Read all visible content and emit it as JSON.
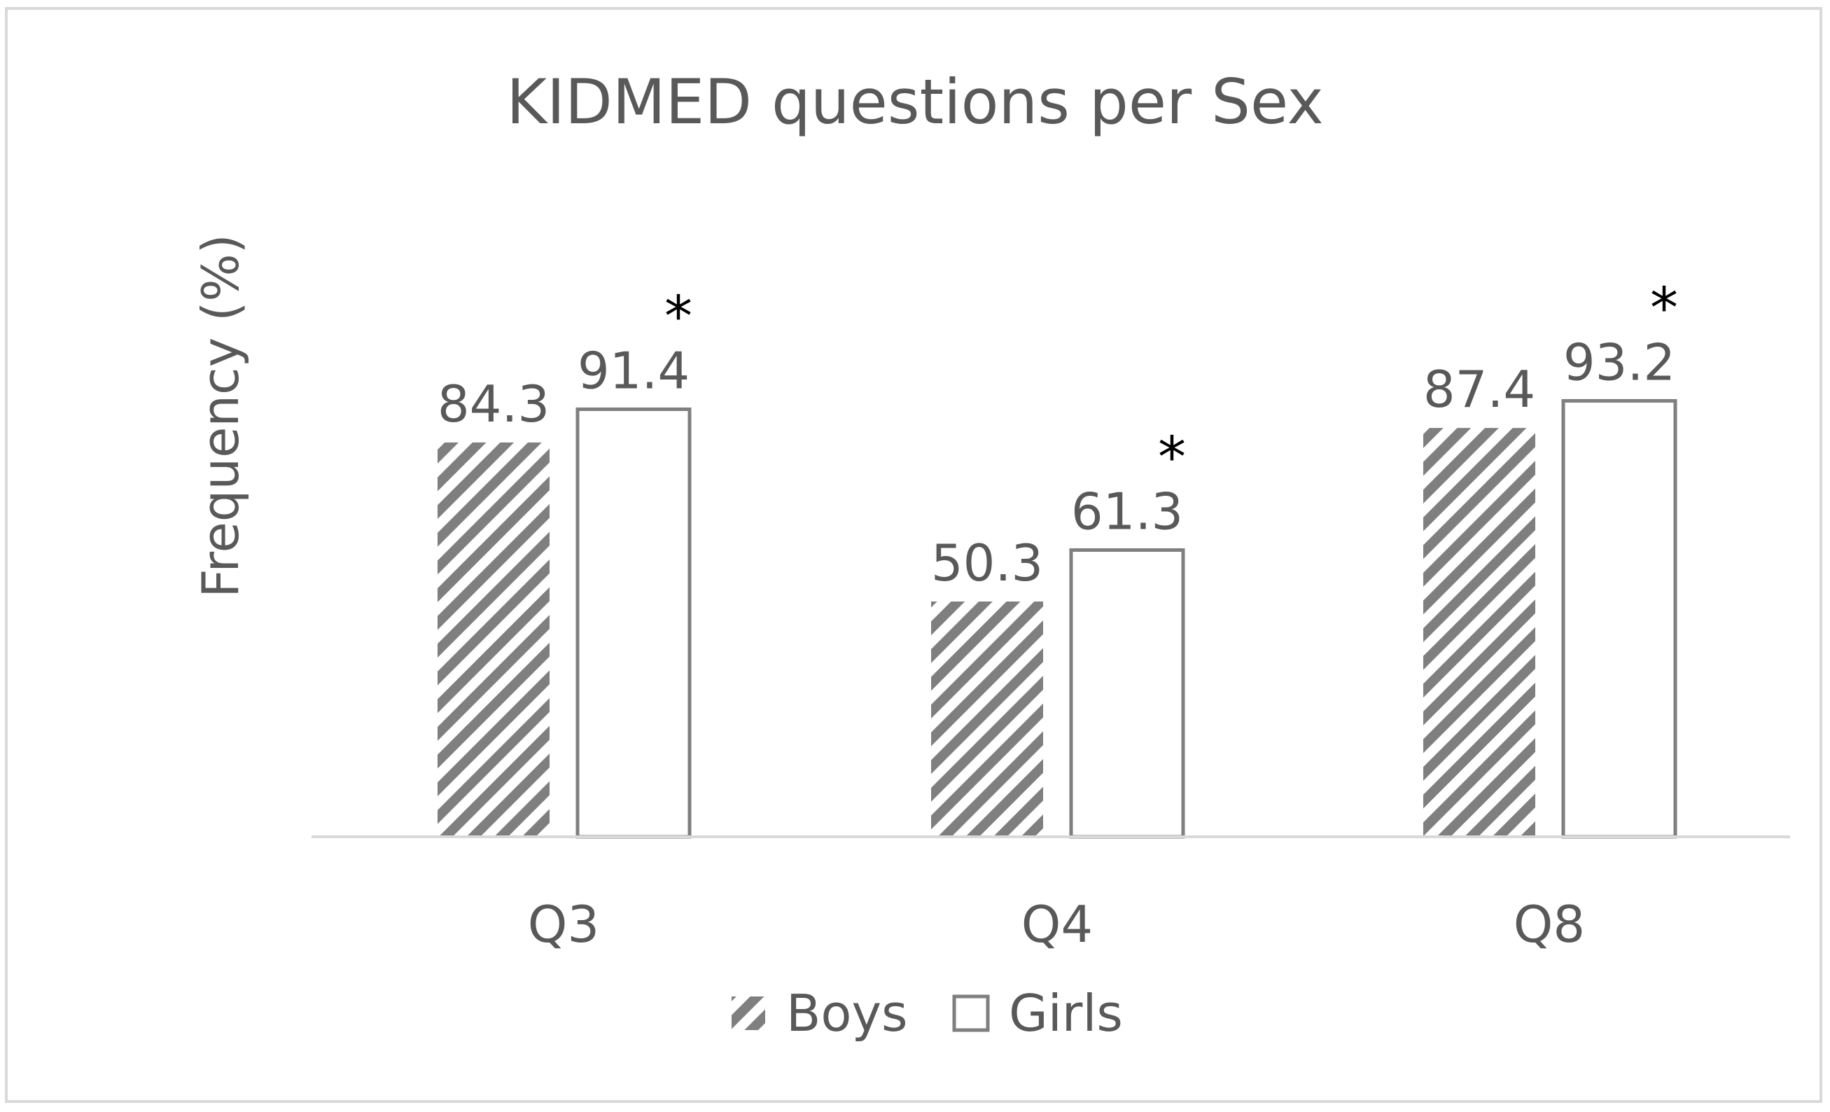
{
  "chart_data": {
    "type": "bar",
    "title": "KIDMED questions per Sex",
    "xlabel": "",
    "ylabel": "Frequency (%)",
    "categories": [
      "Q3",
      "Q4",
      "Q8"
    ],
    "ylim": [
      0,
      100
    ],
    "grid": false,
    "legend_position": "bottom",
    "series": [
      {
        "name": "Boys",
        "values": [
          84.3,
          50.3,
          87.4
        ],
        "labels": [
          "84.3",
          "50.3",
          "87.4"
        ],
        "fill": "diagonal-hatch",
        "color": "#7f7f7f"
      },
      {
        "name": "Girls",
        "values": [
          91.4,
          61.3,
          93.2
        ],
        "labels": [
          "91.4",
          "61.3",
          "93.2"
        ],
        "fill": "white",
        "color": "#7f7f7f"
      }
    ],
    "significance_marker": "*",
    "significance_categories": [
      0,
      1,
      2
    ],
    "colors": {
      "text": "#595959",
      "bar_outline": "#7f7f7f",
      "hatch": "#7f7f7f",
      "axis": "#d9d9d9",
      "frame": "#d9d9d9",
      "marker": "#000000"
    }
  }
}
